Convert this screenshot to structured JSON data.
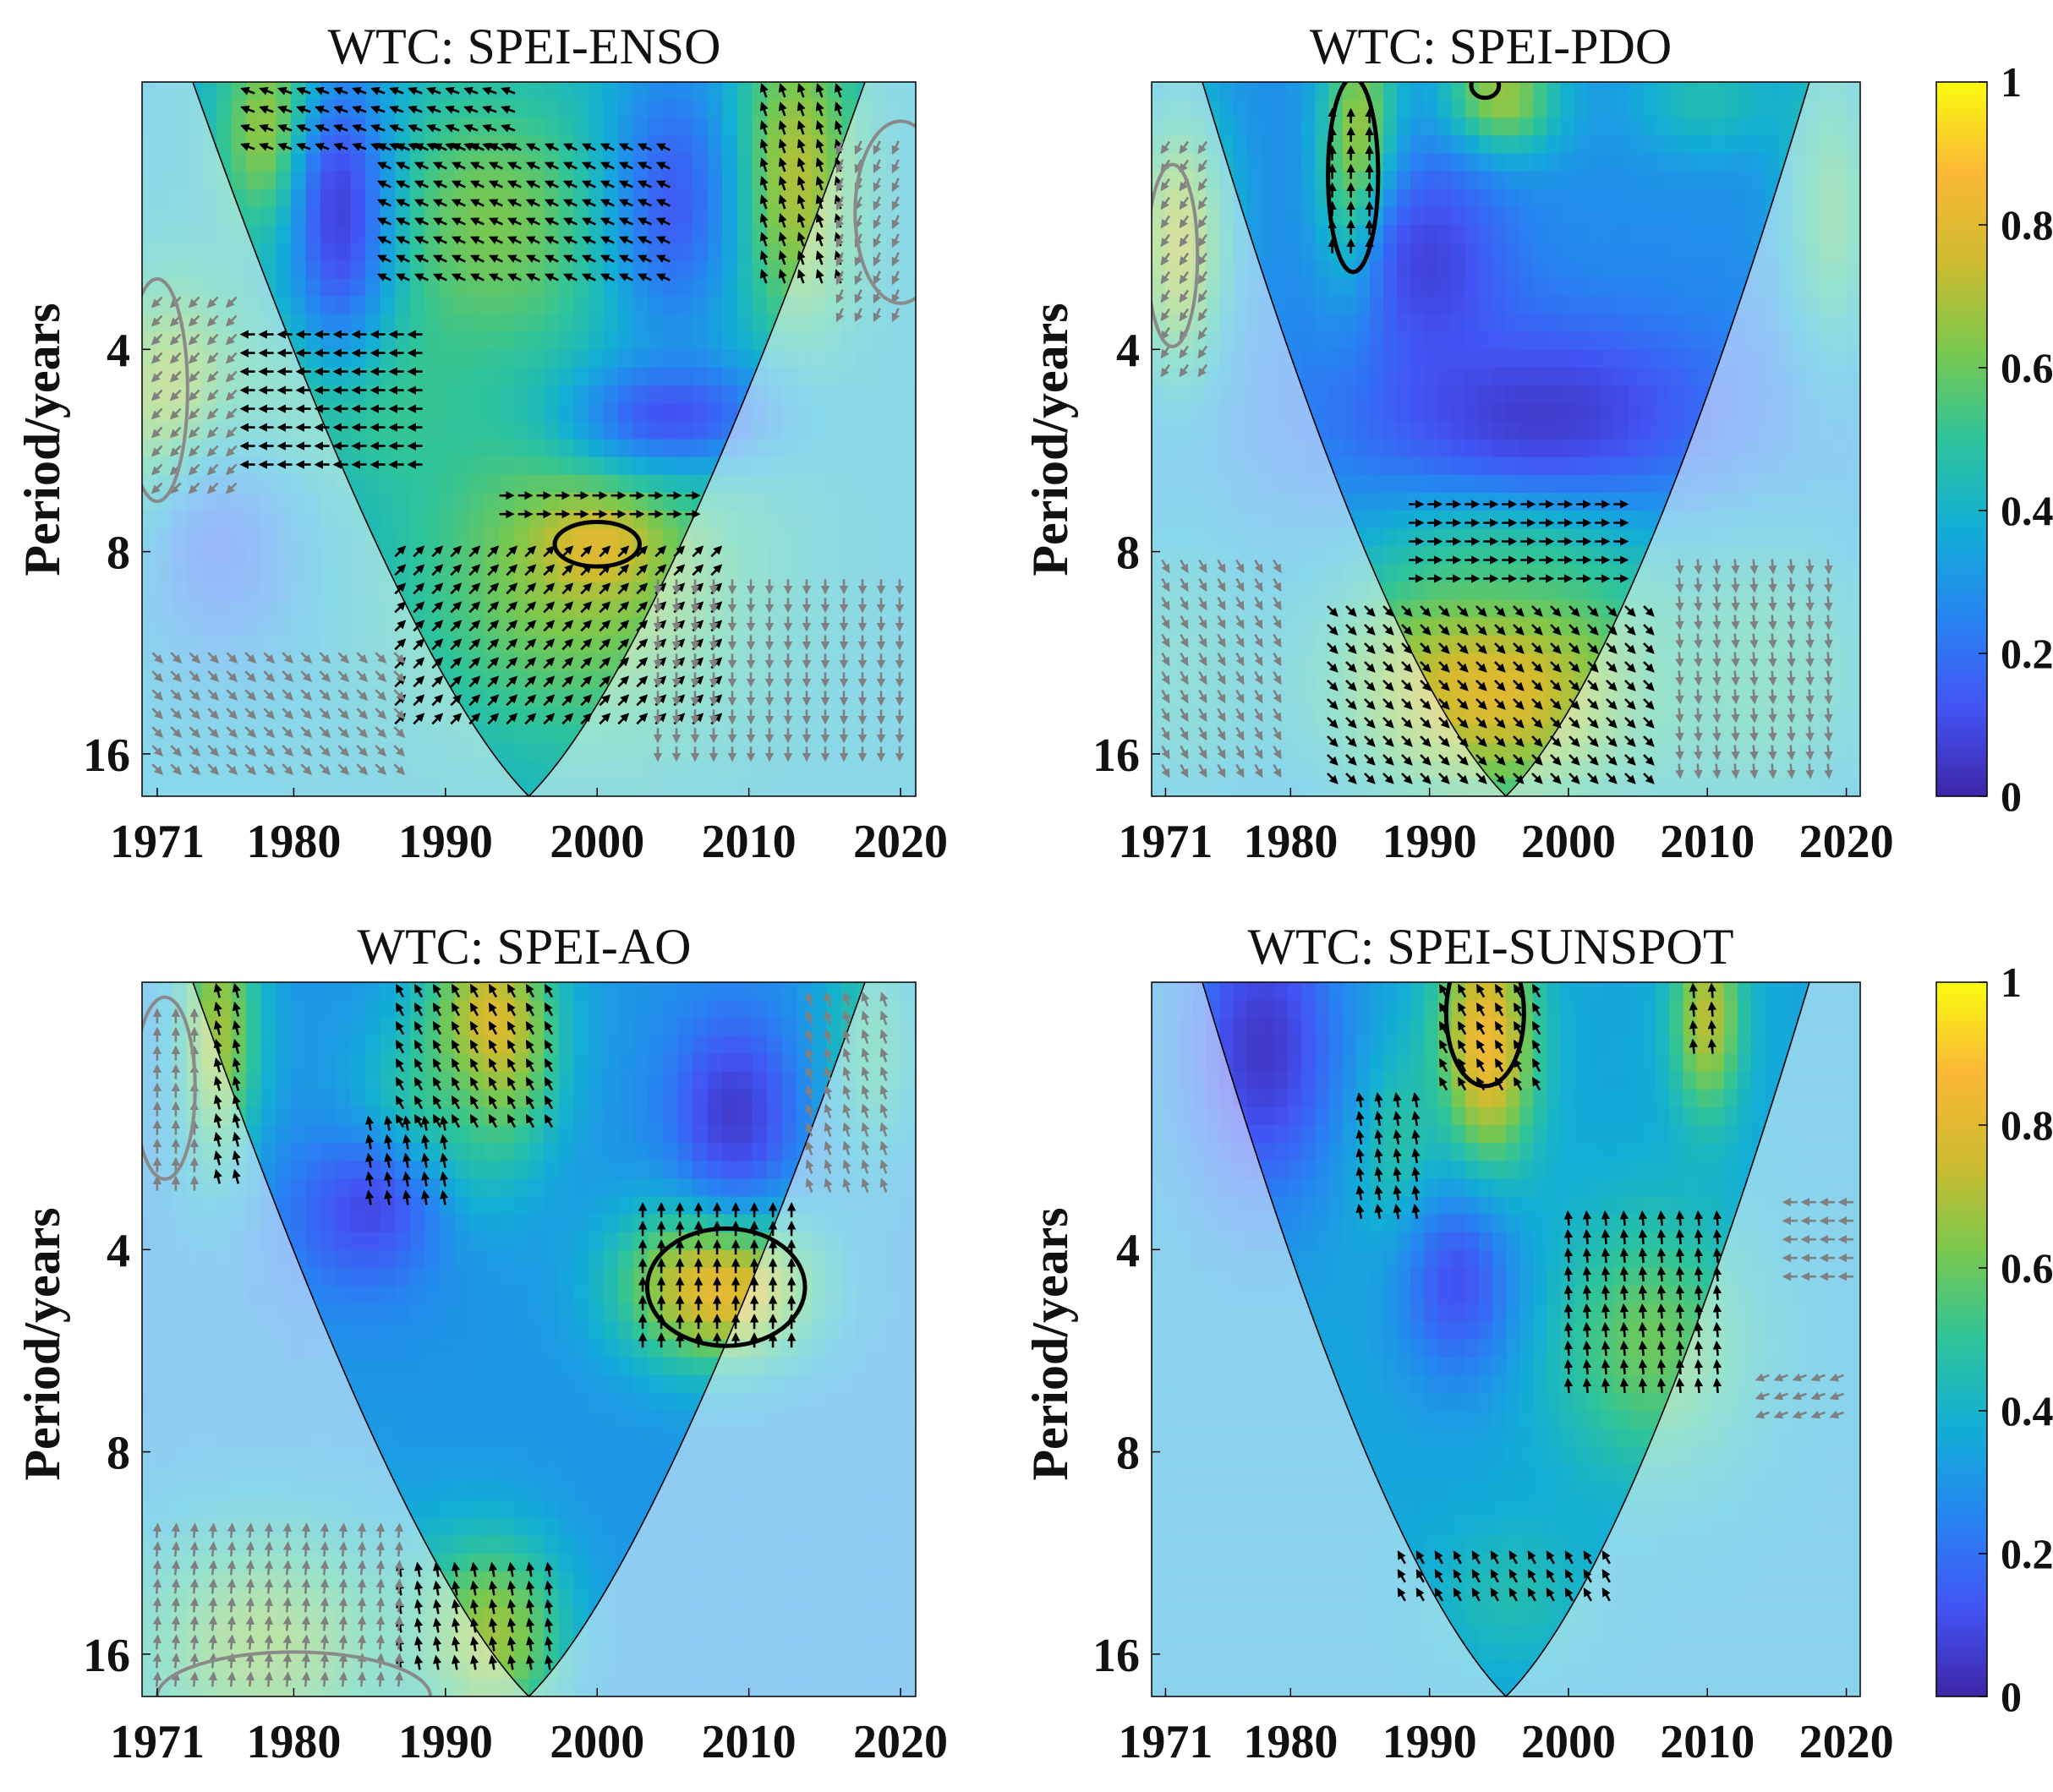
{
  "figure": {
    "cmap_stops": [
      "#3e26a8",
      "#4254f5",
      "#2685f1",
      "#12aed6",
      "#2ec49a",
      "#7bc84d",
      "#cfbb2e",
      "#fbb837",
      "#f9fb0e"
    ],
    "arrow_color_sig": "#000000",
    "arrow_color_coi": "#808080"
  },
  "colorbar": {
    "ticks": [
      0,
      0.2,
      0.4,
      0.6,
      0.8,
      1
    ],
    "labels": [
      "0",
      "0.2",
      "0.4",
      "0.6",
      "0.8",
      "1"
    ]
  },
  "chart_data": [
    {
      "type": "heatmap",
      "title": "WTC: SPEI-ENSO",
      "xlabel": "",
      "ylabel": "Period/years",
      "xlim": [
        1970,
        2021
      ],
      "ylim": [
        1.6,
        18.5
      ],
      "yscale": "log2",
      "x_ticks": [
        1971,
        1980,
        1990,
        2000,
        2010,
        2020
      ],
      "y_ticks": [
        4,
        8,
        16
      ],
      "coi": {
        "center_year": 1995.5,
        "bottom_period": 18.5
      },
      "background": 0.38,
      "blobs": [
        {
          "year": 1979,
          "period": 1.9,
          "value": 0.75,
          "dx": 2.5,
          "dy": 0.35
        },
        {
          "year": 1993,
          "period": 2.6,
          "value": 0.62,
          "dx": 6.0,
          "dy": 0.5
        },
        {
          "year": 2013,
          "period": 2.2,
          "value": 0.72,
          "dx": 3.0,
          "dy": 0.55
        },
        {
          "year": 1999,
          "period": 8.5,
          "value": 0.66,
          "dx": 8.0,
          "dy": 0.6
        },
        {
          "year": 2000,
          "period": 7.8,
          "value": 0.8,
          "dx": 2.5,
          "dy": 0.15
        },
        {
          "year": 1983,
          "period": 4.6,
          "value": 0.58,
          "dx": 5.0,
          "dy": 0.35
        },
        {
          "year": 1972,
          "period": 5.0,
          "value": 0.72,
          "dx": 3.0,
          "dy": 0.45
        },
        {
          "year": 1983,
          "period": 2.5,
          "value": 0.08,
          "dx": 2.5,
          "dy": 0.55
        },
        {
          "year": 2005,
          "period": 2.4,
          "value": 0.15,
          "dx": 3.0,
          "dy": 0.5
        },
        {
          "year": 2005,
          "period": 5.0,
          "value": 0.12,
          "dx": 5.0,
          "dy": 0.2
        },
        {
          "year": 1975,
          "period": 8.0,
          "value": 0.2,
          "dx": 4.0,
          "dy": 0.4
        }
      ],
      "sig_contours": [
        {
          "year": 2000,
          "period": 7.8,
          "rx": 2.8,
          "ry": 0.11
        }
      ],
      "coi_contours": [
        {
          "year": 1971,
          "period": 4.6,
          "rx": 2.0,
          "ry": 0.55
        },
        {
          "year": 2020,
          "period": 2.5,
          "rx": 3.0,
          "ry": 0.45
        }
      ],
      "arrow_fields": [
        {
          "x0": 1977,
          "x1": 1995,
          "p0": 1.65,
          "p1": 2.0,
          "angle": 160,
          "kind": "sig"
        },
        {
          "x0": 1986,
          "x1": 2005,
          "p0": 2.0,
          "p1": 3.3,
          "angle": 155,
          "kind": "sig"
        },
        {
          "x0": 1977,
          "x1": 1989,
          "p0": 3.8,
          "p1": 6.0,
          "angle": 180,
          "kind": "sig"
        },
        {
          "x0": 1994,
          "x1": 2007,
          "p0": 6.6,
          "p1": 7.4,
          "angle": 0,
          "kind": "sig"
        },
        {
          "x0": 1987,
          "x1": 2008,
          "p0": 8.0,
          "p1": 15.0,
          "angle": 45,
          "kind": "sig"
        },
        {
          "x0": 2011,
          "x1": 2016,
          "p0": 1.65,
          "p1": 3.2,
          "angle": 110,
          "kind": "sig"
        },
        {
          "x0": 1971,
          "x1": 1977,
          "p0": 3.4,
          "p1": 6.6,
          "angle": 225,
          "kind": "coi"
        },
        {
          "x0": 1971,
          "x1": 1988,
          "p0": 11.5,
          "p1": 17.5,
          "angle": 315,
          "kind": "coi"
        },
        {
          "x0": 2004,
          "x1": 2020,
          "p0": 9.0,
          "p1": 16.0,
          "angle": 270,
          "kind": "coi"
        },
        {
          "x0": 2016,
          "x1": 2020,
          "p0": 2.0,
          "p1": 3.6,
          "angle": 245,
          "kind": "coi"
        }
      ]
    },
    {
      "type": "heatmap",
      "title": "WTC: SPEI-PDO",
      "xlabel": "",
      "ylabel": "Period/years",
      "xlim": [
        1970,
        2021
      ],
      "ylim": [
        1.6,
        18.5
      ],
      "yscale": "log2",
      "x_ticks": [
        1971,
        1980,
        1990,
        2000,
        2010,
        2020
      ],
      "y_ticks": [
        4,
        8,
        16
      ],
      "coi": {
        "center_year": 1995.5,
        "bottom_period": 18.5
      },
      "background": 0.28,
      "blobs": [
        {
          "year": 1985,
          "period": 2.1,
          "value": 0.75,
          "dx": 2.0,
          "dy": 0.5
        },
        {
          "year": 1995,
          "period": 1.7,
          "value": 0.7,
          "dx": 3.0,
          "dy": 0.2
        },
        {
          "year": 2010,
          "period": 1.7,
          "value": 0.45,
          "dx": 4.0,
          "dy": 0.2
        },
        {
          "year": 1995,
          "period": 12.5,
          "value": 0.82,
          "dx": 9.0,
          "dy": 0.45
        },
        {
          "year": 1996,
          "period": 7.8,
          "value": 0.58,
          "dx": 6.0,
          "dy": 0.3
        },
        {
          "year": 2014,
          "period": 12.0,
          "value": 0.5,
          "dx": 7.0,
          "dy": 0.6
        },
        {
          "year": 1972,
          "period": 12.0,
          "value": 0.45,
          "dx": 5.0,
          "dy": 0.6
        },
        {
          "year": 1972,
          "period": 2.8,
          "value": 0.7,
          "dx": 2.5,
          "dy": 0.5
        },
        {
          "year": 2019,
          "period": 2.5,
          "value": 0.55,
          "dx": 2.5,
          "dy": 0.6
        },
        {
          "year": 1998,
          "period": 5.0,
          "value": 0.06,
          "dx": 10.0,
          "dy": 0.35
        },
        {
          "year": 1990,
          "period": 3.0,
          "value": 0.08,
          "dx": 4.0,
          "dy": 0.4
        }
      ],
      "sig_contours": [
        {
          "year": 1984.5,
          "period": 2.2,
          "rx": 1.8,
          "ry": 0.48
        },
        {
          "year": 1994,
          "period": 1.62,
          "rx": 1.0,
          "ry": 0.06
        }
      ],
      "coi_contours": [
        {
          "year": 1971.5,
          "period": 2.9,
          "rx": 1.8,
          "ry": 0.45
        }
      ],
      "arrow_fields": [
        {
          "x0": 1983,
          "x1": 1986,
          "p0": 1.8,
          "p1": 2.9,
          "angle": 90,
          "kind": "sig"
        },
        {
          "x0": 1989,
          "x1": 2004,
          "p0": 6.8,
          "p1": 9.2,
          "angle": 0,
          "kind": "sig"
        },
        {
          "x0": 1983,
          "x1": 2007,
          "p0": 9.8,
          "p1": 17.5,
          "angle": 315,
          "kind": "sig"
        },
        {
          "x0": 1971,
          "x1": 1980,
          "p0": 8.4,
          "p1": 17.5,
          "angle": 300,
          "kind": "coi"
        },
        {
          "x0": 2008,
          "x1": 2020,
          "p0": 8.4,
          "p1": 17.5,
          "angle": 275,
          "kind": "coi"
        },
        {
          "x0": 1971,
          "x1": 1974,
          "p0": 2.0,
          "p1": 4.3,
          "angle": 235,
          "kind": "coi"
        }
      ]
    },
    {
      "type": "heatmap",
      "title": "WTC: SPEI-AO",
      "xlabel": "",
      "ylabel": "Period/years",
      "xlim": [
        1970,
        2021
      ],
      "ylim": [
        1.6,
        18.5
      ],
      "yscale": "log2",
      "x_ticks": [
        1971,
        1980,
        1990,
        2000,
        2010,
        2020
      ],
      "y_ticks": [
        4,
        8,
        16
      ],
      "coi": {
        "center_year": 1995.5,
        "bottom_period": 18.5
      },
      "background": 0.3,
      "blobs": [
        {
          "year": 1993,
          "period": 1.9,
          "value": 0.82,
          "dx": 3.0,
          "dy": 0.4
        },
        {
          "year": 1989,
          "period": 2.7,
          "value": 0.58,
          "dx": 3.5,
          "dy": 0.35
        },
        {
          "year": 2008,
          "period": 4.5,
          "value": 0.85,
          "dx": 4.5,
          "dy": 0.28
        },
        {
          "year": 1975,
          "period": 1.9,
          "value": 0.68,
          "dx": 2.0,
          "dy": 0.5
        },
        {
          "year": 1993,
          "period": 15.0,
          "value": 0.68,
          "dx": 3.5,
          "dy": 0.35
        },
        {
          "year": 1978,
          "period": 15.5,
          "value": 0.62,
          "dx": 7.0,
          "dy": 0.45
        },
        {
          "year": 2018,
          "period": 2.0,
          "value": 0.5,
          "dx": 2.5,
          "dy": 0.4
        },
        {
          "year": 2009,
          "period": 2.5,
          "value": 0.06,
          "dx": 3.0,
          "dy": 0.35
        },
        {
          "year": 1985,
          "period": 3.5,
          "value": 0.1,
          "dx": 4.0,
          "dy": 0.3
        }
      ],
      "sig_contours": [
        {
          "year": 2008.5,
          "period": 4.55,
          "rx": 5.2,
          "ry": 0.29
        }
      ],
      "coi_contours": [
        {
          "year": 1971.5,
          "period": 2.3,
          "rx": 2.0,
          "ry": 0.45
        },
        {
          "year": 1980,
          "period": 18.5,
          "rx": 9.0,
          "ry": 0.22
        }
      ],
      "arrow_fields": [
        {
          "x0": 1975,
          "x1": 1977,
          "p0": 1.65,
          "p1": 3.2,
          "angle": 105,
          "kind": "sig"
        },
        {
          "x0": 1987,
          "x1": 1997,
          "p0": 1.65,
          "p1": 2.6,
          "angle": 120,
          "kind": "sig"
        },
        {
          "x0": 1985,
          "x1": 1991,
          "p0": 2.6,
          "p1": 3.5,
          "angle": 100,
          "kind": "sig"
        },
        {
          "x0": 2003,
          "x1": 2013,
          "p0": 3.5,
          "p1": 5.8,
          "angle": 90,
          "kind": "sig"
        },
        {
          "x0": 1987,
          "x1": 1998,
          "p0": 12.0,
          "p1": 17.5,
          "angle": 100,
          "kind": "sig"
        },
        {
          "x0": 1971,
          "x1": 1988,
          "p0": 10.5,
          "p1": 17.5,
          "angle": 85,
          "kind": "coi"
        },
        {
          "x0": 2014,
          "x1": 2020,
          "p0": 1.7,
          "p1": 3.4,
          "angle": 110,
          "kind": "coi"
        },
        {
          "x0": 1971,
          "x1": 1974,
          "p0": 1.8,
          "p1": 3.2,
          "angle": 90,
          "kind": "coi"
        }
      ]
    },
    {
      "type": "heatmap",
      "title": "WTC: SPEI-SUNSPOT",
      "xlabel": "",
      "ylabel": "Period/years",
      "xlim": [
        1970,
        2021
      ],
      "ylim": [
        1.6,
        18.5
      ],
      "yscale": "log2",
      "x_ticks": [
        1971,
        1980,
        1990,
        2000,
        2010,
        2020
      ],
      "y_ticks": [
        4,
        8,
        16
      ],
      "coi": {
        "center_year": 1995.5,
        "bottom_period": 18.5
      },
      "background": 0.35,
      "blobs": [
        {
          "year": 1994,
          "period": 2.0,
          "value": 0.86,
          "dx": 2.5,
          "dy": 0.45
        },
        {
          "year": 2010,
          "period": 1.8,
          "value": 0.72,
          "dx": 1.8,
          "dy": 0.35
        },
        {
          "year": 2006,
          "period": 5.5,
          "value": 0.6,
          "dx": 5.0,
          "dy": 0.45
        },
        {
          "year": 1988,
          "period": 2.8,
          "value": 0.5,
          "dx": 2.5,
          "dy": 0.35
        },
        {
          "year": 1996,
          "period": 13.0,
          "value": 0.45,
          "dx": 4.0,
          "dy": 0.25
        },
        {
          "year": 1978,
          "period": 2.0,
          "value": 0.05,
          "dx": 4.0,
          "dy": 0.55
        },
        {
          "year": 1992,
          "period": 4.5,
          "value": 0.12,
          "dx": 3.0,
          "dy": 0.35
        }
      ],
      "sig_contours": [
        {
          "year": 1994,
          "period": 1.78,
          "rx": 2.8,
          "ry": 0.36
        }
      ],
      "coi_contours": [],
      "arrow_fields": [
        {
          "x0": 1991,
          "x1": 1998,
          "p0": 1.65,
          "p1": 2.4,
          "angle": 120,
          "kind": "sig"
        },
        {
          "x0": 2009,
          "x1": 2011,
          "p0": 1.65,
          "p1": 2.0,
          "angle": 95,
          "kind": "sig"
        },
        {
          "x0": 1985,
          "x1": 1989,
          "p0": 2.4,
          "p1": 3.6,
          "angle": 100,
          "kind": "sig"
        },
        {
          "x0": 2000,
          "x1": 2012,
          "p0": 3.6,
          "p1": 6.6,
          "angle": 95,
          "kind": "sig"
        },
        {
          "x0": 1988,
          "x1": 2003,
          "p0": 11.5,
          "p1": 13.5,
          "angle": 120,
          "kind": "sig"
        },
        {
          "x0": 2016,
          "x1": 2020,
          "p0": 3.4,
          "p1": 4.4,
          "angle": 180,
          "kind": "coi"
        },
        {
          "x0": 2014,
          "x1": 2020,
          "p0": 6.2,
          "p1": 7.2,
          "angle": 200,
          "kind": "coi"
        }
      ]
    }
  ]
}
